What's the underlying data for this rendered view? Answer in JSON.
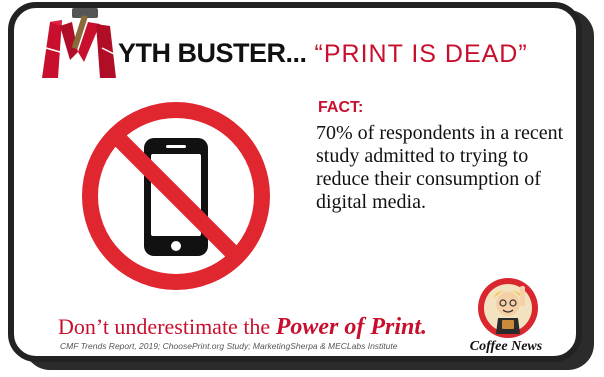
{
  "header": {
    "logo_letter": "M",
    "headline_rest": "YTH BUSTER...",
    "quote": "“PRINT IS DEAD”"
  },
  "fact": {
    "label": "FACT:",
    "text": "70% of respondents in a recent study admitted to trying to reduce their consumption of digital media."
  },
  "footer": {
    "tagline_prefix": "Don’t underestimate the",
    "tagline_emphasis": "Power of Print.",
    "sources": "CMF Trends Report, 2019; ChoosePrint.org Study; MarketingSherpa & MECLabs Institute"
  },
  "brand": {
    "name": "Coffee News"
  },
  "colors": {
    "accent_red": "#c8102e",
    "frame": "#222222",
    "text": "#111111"
  },
  "icons": [
    "hammer-icon",
    "no-phone-icon",
    "mascot-icon"
  ]
}
